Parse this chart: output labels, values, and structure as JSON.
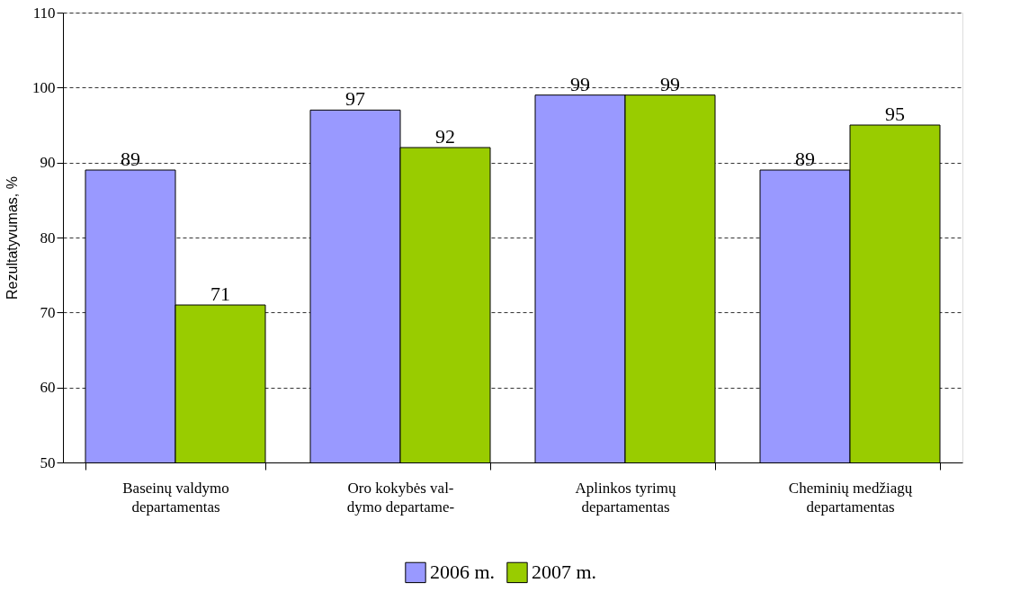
{
  "chart_data": {
    "type": "bar",
    "ylabel": "Rezultatyvumas, %",
    "categories": [
      "Baseinų valdymo\ndepartamentas",
      "Oro kokybės val-\ndymo departame-",
      "Aplinkos tyrimų\ndepartamentas",
      "Cheminių medžiagų\ndepartamentas"
    ],
    "series": [
      {
        "name": "2006 m.",
        "color": "#9999ff",
        "values": [
          89,
          97,
          99,
          89
        ]
      },
      {
        "name": "2007 m.",
        "color": "#99cc00",
        "values": [
          71,
          92,
          99,
          95
        ]
      }
    ],
    "ylim": [
      50,
      110
    ],
    "yticks": [
      50,
      60,
      70,
      80,
      90,
      100,
      110
    ],
    "grid": "y",
    "legend": "bottom",
    "data_labels": true
  }
}
